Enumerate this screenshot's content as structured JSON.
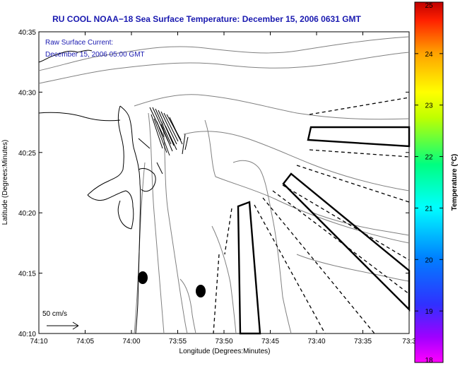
{
  "title": "RU COOL  NOAA−18  Sea Surface Temperature:  December 15, 2006 0631 GMT",
  "info": {
    "line1": "Raw Surface Current:",
    "line2": "December 15, 2006 05:00 GMT"
  },
  "scale_label": "50 cm/s",
  "axes": {
    "xlabel": "Longitude (Degrees:Minutes)",
    "ylabel": "Latitude (Degrees:Minutes)",
    "xticks": [
      "74:10",
      "74:05",
      "74:00",
      "73:55",
      "73:50",
      "73:45",
      "73:40",
      "73:35",
      "73:3"
    ],
    "yticks": [
      "40:35",
      "40:30",
      "40:25",
      "40:20",
      "40:15",
      "40:10"
    ]
  },
  "colorbar": {
    "label": "Temperature (°C)",
    "ticks": [
      "25",
      "24",
      "23",
      "22",
      "21",
      "20",
      "19",
      "18"
    ],
    "range": [
      18,
      25
    ]
  }
}
